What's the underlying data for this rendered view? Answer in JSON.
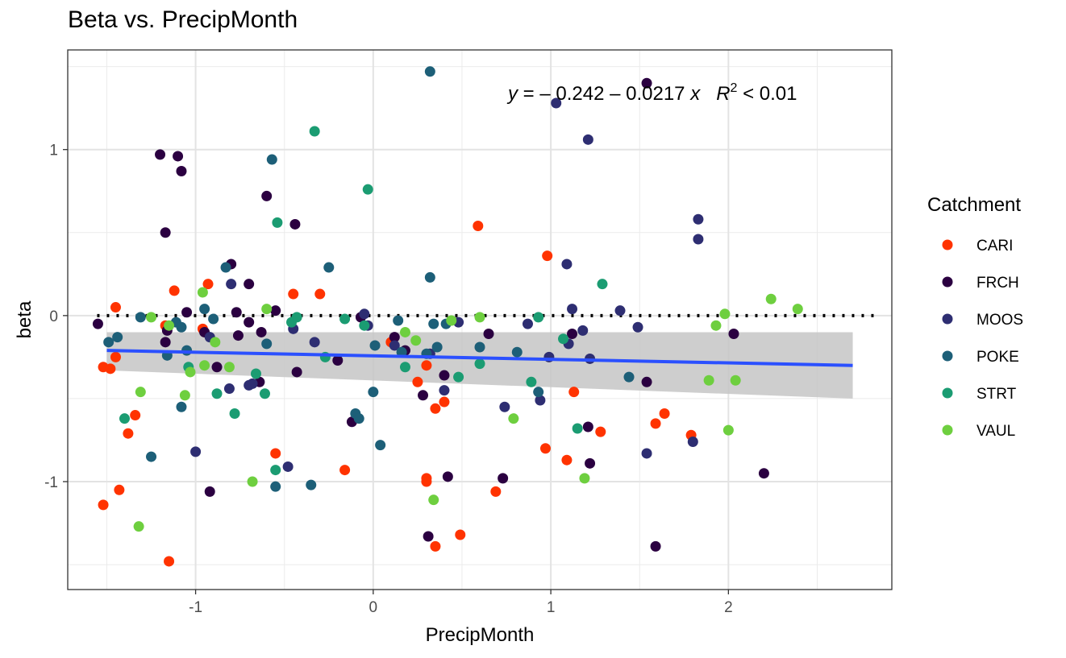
{
  "chart_data": {
    "type": "scatter",
    "title": "Beta vs. PrecipMonth",
    "xlabel": "PrecipMonth",
    "ylabel": "beta",
    "xlim": [
      -1.72,
      2.92
    ],
    "ylim": [
      -1.65,
      1.6
    ],
    "x_ticks": [
      -1,
      0,
      1,
      2
    ],
    "x_tick_labels": [
      "-1",
      "0",
      "1",
      "2"
    ],
    "y_ticks": [
      -1,
      0,
      1
    ],
    "y_tick_labels": [
      "-1",
      "0",
      "1"
    ],
    "grid": true,
    "legend": {
      "title": "Catchment",
      "position": "right"
    },
    "annotation": {
      "eq_lhs": "y",
      "eq_rhs": " = – 0.242 – 0.0217 ",
      "eq_x": "x",
      "r2_label": "R",
      "r2_sup": "2",
      "r2_rhs": " < 0.01"
    },
    "reference_line": {
      "y": 0,
      "style": "dotted"
    },
    "fit": {
      "x_start": -1.5,
      "x_end": 2.7,
      "y_start": -0.21,
      "y_end": -0.3,
      "ci_lower_start": -0.33,
      "ci_upper_start": -0.1,
      "ci_lower_end": -0.5,
      "ci_upper_end": -0.1,
      "color": "#2b50ff",
      "band_color": "#c6c6c6"
    },
    "series": [
      {
        "name": "CARI",
        "color": "#ff3300",
        "points": [
          [
            -1.52,
            -0.31
          ],
          [
            -1.48,
            -0.32
          ],
          [
            -1.52,
            -1.14
          ],
          [
            -1.45,
            -0.25
          ],
          [
            -1.45,
            0.05
          ],
          [
            -1.43,
            -1.05
          ],
          [
            -1.38,
            -0.71
          ],
          [
            -1.34,
            -0.6
          ],
          [
            -1.17,
            -0.06
          ],
          [
            -1.15,
            -1.48
          ],
          [
            -1.12,
            0.15
          ],
          [
            -0.96,
            -0.08
          ],
          [
            -0.93,
            0.19
          ],
          [
            -0.45,
            0.13
          ],
          [
            -0.55,
            -0.83
          ],
          [
            -0.3,
            0.13
          ],
          [
            -0.16,
            -0.93
          ],
          [
            0.1,
            -0.16
          ],
          [
            0.25,
            -0.4
          ],
          [
            0.3,
            -0.3
          ],
          [
            0.3,
            -0.98
          ],
          [
            0.3,
            -1.0
          ],
          [
            0.35,
            -0.56
          ],
          [
            0.35,
            -1.39
          ],
          [
            0.4,
            -0.52
          ],
          [
            0.49,
            -1.32
          ],
          [
            0.59,
            0.54
          ],
          [
            0.69,
            -1.06
          ],
          [
            0.97,
            -0.8
          ],
          [
            0.98,
            0.36
          ],
          [
            1.09,
            -0.87
          ],
          [
            1.13,
            -0.46
          ],
          [
            1.28,
            -0.7
          ],
          [
            1.59,
            -0.65
          ],
          [
            1.64,
            -0.59
          ],
          [
            1.79,
            -0.72
          ]
        ]
      },
      {
        "name": "FRCH",
        "color": "#2b0041",
        "points": [
          [
            -1.55,
            -0.05
          ],
          [
            -1.2,
            0.97
          ],
          [
            -1.1,
            0.96
          ],
          [
            -1.08,
            0.87
          ],
          [
            -1.17,
            0.5
          ],
          [
            -1.17,
            -0.16
          ],
          [
            -1.16,
            -0.09
          ],
          [
            -1.05,
            0.02
          ],
          [
            -0.95,
            -0.1
          ],
          [
            -0.92,
            -1.06
          ],
          [
            -0.88,
            -0.31
          ],
          [
            -0.8,
            0.31
          ],
          [
            -0.77,
            0.02
          ],
          [
            -0.76,
            -0.12
          ],
          [
            -0.7,
            -0.04
          ],
          [
            -0.7,
            0.19
          ],
          [
            -0.63,
            -0.1
          ],
          [
            -0.64,
            -0.4
          ],
          [
            -0.6,
            0.72
          ],
          [
            -0.55,
            0.03
          ],
          [
            -0.44,
            0.55
          ],
          [
            -0.43,
            -0.34
          ],
          [
            -0.2,
            -0.27
          ],
          [
            -0.12,
            -0.64
          ],
          [
            -0.07,
            -0.01
          ],
          [
            0.12,
            -0.13
          ],
          [
            0.18,
            -0.21
          ],
          [
            0.28,
            -0.48
          ],
          [
            0.31,
            -1.33
          ],
          [
            0.4,
            -0.36
          ],
          [
            0.42,
            -0.97
          ],
          [
            0.65,
            -0.11
          ],
          [
            0.73,
            -0.98
          ],
          [
            1.12,
            -0.11
          ],
          [
            1.21,
            -0.67
          ],
          [
            1.22,
            -0.89
          ],
          [
            1.54,
            -0.4
          ],
          [
            1.59,
            -1.39
          ],
          [
            1.54,
            1.4
          ],
          [
            2.03,
            -0.11
          ],
          [
            2.2,
            -0.95
          ]
        ]
      },
      {
        "name": "MOOS",
        "color": "#2e2e72",
        "points": [
          [
            -1.0,
            -0.82
          ],
          [
            -0.92,
            -0.13
          ],
          [
            -0.81,
            -0.44
          ],
          [
            -0.8,
            0.19
          ],
          [
            -0.7,
            -0.42
          ],
          [
            -0.68,
            -0.41
          ],
          [
            -0.45,
            -0.08
          ],
          [
            -0.48,
            -0.91
          ],
          [
            -0.33,
            -0.16
          ],
          [
            -0.05,
            0.01
          ],
          [
            -0.03,
            -0.06
          ],
          [
            0.12,
            -0.18
          ],
          [
            0.32,
            -0.23
          ],
          [
            0.4,
            -0.45
          ],
          [
            0.48,
            -0.04
          ],
          [
            0.74,
            -0.55
          ],
          [
            0.87,
            -0.05
          ],
          [
            0.94,
            -0.51
          ],
          [
            0.99,
            -0.25
          ],
          [
            1.03,
            1.28
          ],
          [
            1.09,
            0.31
          ],
          [
            1.1,
            -0.17
          ],
          [
            1.12,
            0.04
          ],
          [
            1.18,
            -0.09
          ],
          [
            1.21,
            1.06
          ],
          [
            1.22,
            -0.26
          ],
          [
            1.39,
            0.03
          ],
          [
            1.49,
            -0.07
          ],
          [
            1.54,
            -0.83
          ],
          [
            1.8,
            -0.76
          ],
          [
            1.83,
            0.58
          ],
          [
            1.83,
            0.46
          ]
        ]
      },
      {
        "name": "POKE",
        "color": "#1d5f78",
        "points": [
          [
            -1.49,
            -0.16
          ],
          [
            -1.44,
            -0.13
          ],
          [
            -1.31,
            -0.01
          ],
          [
            -1.25,
            -0.85
          ],
          [
            -1.16,
            -0.24
          ],
          [
            -1.11,
            -0.04
          ],
          [
            -1.08,
            -0.07
          ],
          [
            -1.08,
            -0.55
          ],
          [
            -1.05,
            -0.21
          ],
          [
            -0.95,
            0.04
          ],
          [
            -0.9,
            -0.02
          ],
          [
            -0.83,
            0.29
          ],
          [
            -0.6,
            -0.17
          ],
          [
            -0.57,
            0.94
          ],
          [
            -0.55,
            -1.03
          ],
          [
            -0.35,
            -1.02
          ],
          [
            -0.25,
            0.29
          ],
          [
            -0.1,
            -0.59
          ],
          [
            -0.08,
            -0.62
          ],
          [
            0.0,
            -0.46
          ],
          [
            0.01,
            -0.18
          ],
          [
            0.04,
            -0.78
          ],
          [
            0.16,
            -0.22
          ],
          [
            0.14,
            -0.03
          ],
          [
            0.3,
            -0.23
          ],
          [
            0.32,
            1.47
          ],
          [
            0.32,
            0.23
          ],
          [
            0.34,
            -0.05
          ],
          [
            0.36,
            -0.19
          ],
          [
            0.41,
            -0.05
          ],
          [
            0.6,
            -0.19
          ],
          [
            0.81,
            -0.22
          ],
          [
            0.93,
            -0.46
          ],
          [
            1.44,
            -0.37
          ]
        ]
      },
      {
        "name": "STRT",
        "color": "#1b9c72",
        "points": [
          [
            -1.4,
            -0.62
          ],
          [
            -1.04,
            -0.31
          ],
          [
            -0.88,
            -0.47
          ],
          [
            -0.78,
            -0.59
          ],
          [
            -0.66,
            -0.35
          ],
          [
            -0.61,
            -0.47
          ],
          [
            -0.54,
            0.56
          ],
          [
            -0.55,
            -0.93
          ],
          [
            -0.46,
            -0.04
          ],
          [
            -0.43,
            -0.01
          ],
          [
            -0.33,
            1.11
          ],
          [
            -0.27,
            -0.25
          ],
          [
            -0.16,
            -0.02
          ],
          [
            -0.05,
            -0.06
          ],
          [
            -0.03,
            0.76
          ],
          [
            0.18,
            -0.31
          ],
          [
            0.48,
            -0.37
          ],
          [
            0.6,
            -0.29
          ],
          [
            0.89,
            -0.4
          ],
          [
            0.93,
            -0.01
          ],
          [
            1.07,
            -0.14
          ],
          [
            1.15,
            -0.68
          ],
          [
            1.29,
            0.19
          ]
        ]
      },
      {
        "name": "VAUL",
        "color": "#6ecf3f",
        "points": [
          [
            -1.32,
            -1.27
          ],
          [
            -1.31,
            -0.46
          ],
          [
            -1.25,
            -0.01
          ],
          [
            -1.15,
            -0.06
          ],
          [
            -1.06,
            -0.48
          ],
          [
            -1.03,
            -0.34
          ],
          [
            -0.96,
            0.14
          ],
          [
            -0.95,
            -0.3
          ],
          [
            -0.89,
            -0.16
          ],
          [
            -0.81,
            -0.31
          ],
          [
            -0.68,
            -1.0
          ],
          [
            -0.6,
            0.04
          ],
          [
            0.18,
            -0.1
          ],
          [
            0.24,
            -0.15
          ],
          [
            0.34,
            -1.11
          ],
          [
            0.44,
            -0.03
          ],
          [
            0.6,
            -0.01
          ],
          [
            0.79,
            -0.62
          ],
          [
            1.19,
            -0.98
          ],
          [
            1.89,
            -0.39
          ],
          [
            1.93,
            -0.06
          ],
          [
            1.98,
            0.01
          ],
          [
            2.0,
            -0.69
          ],
          [
            2.04,
            -0.39
          ],
          [
            2.24,
            0.1
          ],
          [
            2.39,
            0.04
          ]
        ]
      }
    ]
  }
}
